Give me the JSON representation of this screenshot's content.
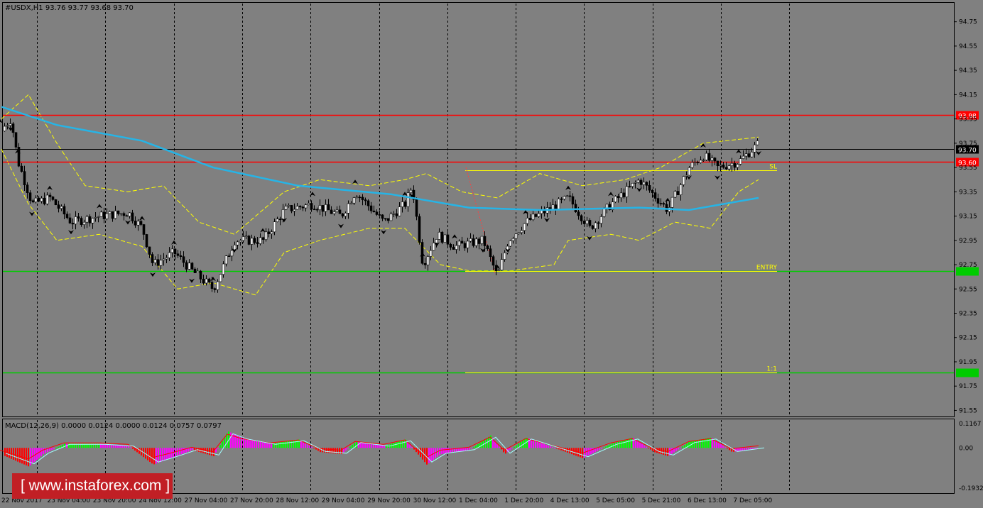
{
  "header": {
    "symbol_info": "#USDX,H1  93.76 93.77 93.68 93.70"
  },
  "macd_header": "MACD(12,26,9) 0.0000 0.0124 0.0000 0.0124 0.0757 0.0797",
  "watermark": "[ www.instaforex.com ]",
  "colors": {
    "background": "#808080",
    "candle": "#000000",
    "ma_line": "#26b4e6",
    "bollinger": "#ffff00",
    "resistance": "#ff0000",
    "support": "#00cc00",
    "level": "#ffff00",
    "macd_up": "#00ff00",
    "macd_down": "#ff0000",
    "macd_pink": "#ff00ff"
  },
  "chart_data": {
    "type": "candlestick",
    "ylim": [
      91.5,
      94.9
    ],
    "y_ticks": [
      "94.75",
      "94.55",
      "94.35",
      "94.15",
      "93.95",
      "93.75",
      "93.55",
      "93.35",
      "93.15",
      "92.95",
      "92.75",
      "92.55",
      "92.35",
      "92.15",
      "91.95",
      "91.75",
      "91.55"
    ],
    "x_ticks": [
      "22 Nov 2017",
      "23 Nov 04:00",
      "23 Nov 20:00",
      "24 Nov 12:00",
      "27 Nov 04:00",
      "27 Nov 20:00",
      "28 Nov 12:00",
      "29 Nov 04:00",
      "29 Nov 20:00",
      "30 Nov 12:00",
      "1 Dec 04:00",
      "1 Dec 20:00",
      "4 Dec 13:00",
      "5 Dec 05:00",
      "5 Dec 21:00",
      "6 Dec 13:00",
      "7 Dec 05:00"
    ],
    "price_path": [
      [
        0,
        93.85
      ],
      [
        15,
        93.95
      ],
      [
        25,
        93.6
      ],
      [
        45,
        93.25
      ],
      [
        70,
        93.3
      ],
      [
        100,
        93.1
      ],
      [
        140,
        93.15
      ],
      [
        180,
        93.18
      ],
      [
        200,
        93.05
      ],
      [
        215,
        92.75
      ],
      [
        245,
        92.85
      ],
      [
        270,
        92.7
      ],
      [
        300,
        92.55
      ],
      [
        330,
        92.95
      ],
      [
        370,
        92.95
      ],
      [
        400,
        93.2
      ],
      [
        440,
        93.25
      ],
      [
        480,
        93.15
      ],
      [
        500,
        93.35
      ],
      [
        540,
        93.1
      ],
      [
        570,
        93.25
      ],
      [
        580,
        93.4
      ],
      [
        595,
        92.75
      ],
      [
        615,
        93.0
      ],
      [
        640,
        92.9
      ],
      [
        680,
        92.95
      ],
      [
        700,
        92.65
      ],
      [
        715,
        92.95
      ],
      [
        740,
        93.1
      ],
      [
        770,
        93.2
      ],
      [
        800,
        93.3
      ],
      [
        830,
        93.05
      ],
      [
        860,
        93.25
      ],
      [
        900,
        93.45
      ],
      [
        940,
        93.2
      ],
      [
        970,
        93.55
      ],
      [
        990,
        93.65
      ],
      [
        1010,
        93.55
      ],
      [
        1040,
        93.6
      ],
      [
        1068,
        93.75
      ]
    ],
    "moving_average": [
      [
        2,
        94.05
      ],
      [
        80,
        93.9
      ],
      [
        200,
        93.77
      ],
      [
        300,
        93.55
      ],
      [
        420,
        93.4
      ],
      [
        550,
        93.33
      ],
      [
        660,
        93.22
      ],
      [
        760,
        93.2
      ],
      [
        900,
        93.22
      ],
      [
        970,
        93.2
      ],
      [
        1068,
        93.3
      ]
    ],
    "bollinger_upper": [
      [
        2,
        93.95
      ],
      [
        40,
        94.15
      ],
      [
        80,
        93.75
      ],
      [
        120,
        93.4
      ],
      [
        180,
        93.35
      ],
      [
        230,
        93.4
      ],
      [
        280,
        93.1
      ],
      [
        330,
        93.0
      ],
      [
        400,
        93.35
      ],
      [
        450,
        93.45
      ],
      [
        520,
        93.4
      ],
      [
        570,
        93.45
      ],
      [
        600,
        93.5
      ],
      [
        650,
        93.35
      ],
      [
        700,
        93.3
      ],
      [
        760,
        93.5
      ],
      [
        820,
        93.4
      ],
      [
        880,
        93.45
      ],
      [
        930,
        93.55
      ],
      [
        990,
        93.75
      ],
      [
        1068,
        93.8
      ]
    ],
    "bollinger_lower": [
      [
        2,
        93.7
      ],
      [
        40,
        93.25
      ],
      [
        80,
        92.95
      ],
      [
        140,
        93.0
      ],
      [
        200,
        92.9
      ],
      [
        250,
        92.55
      ],
      [
        300,
        92.6
      ],
      [
        360,
        92.5
      ],
      [
        400,
        92.85
      ],
      [
        450,
        92.95
      ],
      [
        520,
        93.05
      ],
      [
        570,
        93.05
      ],
      [
        620,
        92.75
      ],
      [
        660,
        92.7
      ],
      [
        720,
        92.7
      ],
      [
        780,
        92.75
      ],
      [
        800,
        92.95
      ],
      [
        860,
        93.0
      ],
      [
        900,
        92.95
      ],
      [
        950,
        93.1
      ],
      [
        1000,
        93.05
      ],
      [
        1040,
        93.35
      ],
      [
        1068,
        93.45
      ]
    ],
    "horizontal_levels": [
      {
        "price": 93.98,
        "label": "93.98",
        "color": "#ff0000"
      },
      {
        "price": 93.6,
        "label": "93.60",
        "color": "#ff0000"
      },
      {
        "price": 92.7,
        "label": "",
        "color": "#00cc00"
      },
      {
        "price": 91.86,
        "label": "",
        "color": "#00cc00"
      }
    ],
    "current_price": {
      "price": 93.7,
      "label": "93.70"
    },
    "trade_levels": [
      {
        "label": "SL",
        "price": 93.53
      },
      {
        "label": "ENTRY",
        "price": 92.7
      },
      {
        "label": "1:1",
        "price": 91.86
      }
    ],
    "macd": {
      "ylim": [
        -0.1932,
        0.1167
      ],
      "y_ticks": [
        "0.1167",
        "0.00",
        "-0.1932"
      ],
      "histogram_path": [
        [
          0,
          -0.03
        ],
        [
          40,
          -0.09
        ],
        [
          60,
          -0.03
        ],
        [
          90,
          0.02
        ],
        [
          140,
          0.02
        ],
        [
          180,
          0.01
        ],
        [
          215,
          -0.08
        ],
        [
          240,
          -0.05
        ],
        [
          270,
          -0.01
        ],
        [
          300,
          -0.04
        ],
        [
          320,
          0.08
        ],
        [
          340,
          0.05
        ],
        [
          380,
          0.02
        ],
        [
          420,
          0.04
        ],
        [
          450,
          -0.02
        ],
        [
          480,
          -0.03
        ],
        [
          500,
          0.03
        ],
        [
          540,
          0.01
        ],
        [
          570,
          0.04
        ],
        [
          600,
          -0.08
        ],
        [
          620,
          -0.03
        ],
        [
          660,
          -0.01
        ],
        [
          690,
          0.06
        ],
        [
          710,
          -0.03
        ],
        [
          740,
          0.05
        ],
        [
          780,
          0.0
        ],
        [
          820,
          -0.05
        ],
        [
          860,
          0.02
        ],
        [
          890,
          0.05
        ],
        [
          920,
          -0.02
        ],
        [
          940,
          -0.04
        ],
        [
          970,
          0.03
        ],
        [
          1000,
          0.05
        ],
        [
          1030,
          -0.02
        ],
        [
          1068,
          0.0
        ]
      ]
    }
  }
}
